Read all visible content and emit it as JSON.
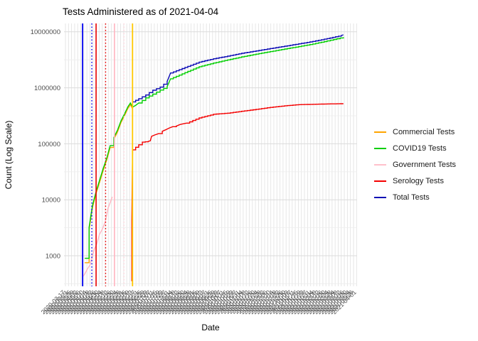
{
  "title": "Tests Administered as of 2021-04-04",
  "axes": {
    "x_label": "Date",
    "y_label": "Count (Log Scale)",
    "y_tick_labels": [
      "1000",
      "10000",
      "100000",
      "1000000",
      "10000000"
    ]
  },
  "legend": {
    "items": [
      {
        "label": "Commercial Tests",
        "color": "#FFA500"
      },
      {
        "label": "COVID19 Tests",
        "color": "#00CE00"
      },
      {
        "label": "Government Tests",
        "color": "#FFC0CB"
      },
      {
        "label": "Serology Tests",
        "color": "#F40000"
      },
      {
        "label": "Total Tests",
        "color": "#0A0AB4"
      }
    ]
  },
  "chart_data": {
    "type": "line",
    "y_scale": "log10",
    "ylim": [
      284,
      14000000
    ],
    "y_major_ticks": [
      1000,
      10000,
      100000,
      1000000,
      10000000
    ],
    "y_minor_ticks": [
      316,
      3162,
      31623,
      316228,
      3162278
    ],
    "grid": "on",
    "legend_position": "right",
    "x_tick_labels": [
      "2020-03-17",
      "2020-03-21",
      "2020-03-25",
      "2020-03-29",
      "2020-04-02",
      "2020-04-06",
      "2020-04-10",
      "2020-04-14",
      "2020-04-18",
      "2020-04-22",
      "2020-04-26",
      "2020-04-30",
      "2020-05-04",
      "2020-05-08",
      "2020-05-12",
      "2020-05-16",
      "2020-05-20",
      "2020-05-24",
      "2020-05-28",
      "2020-06-01",
      "2020-06-05",
      "2020-06-09",
      "2020-06-13",
      "2020-06-17",
      "2020-06-21",
      "2020-06-25",
      "2020-06-29",
      "2020-07-03",
      "2020-07-07",
      "2020-07-11",
      "2020-07-15",
      "2020-07-19",
      "2020-07-23",
      "2020-07-27",
      "2020-07-31",
      "2020-08-04",
      "2020-08-08",
      "2020-08-12",
      "2020-08-16",
      "2020-08-20",
      "2020-08-24",
      "2020-08-28",
      "2020-09-01",
      "2020-09-05",
      "2020-09-09",
      "2020-09-13",
      "2020-09-17",
      "2020-09-21",
      "2020-09-25",
      "2020-09-29",
      "2020-10-03",
      "2020-10-07",
      "2020-10-11",
      "2020-10-15",
      "2020-10-19",
      "2020-10-23",
      "2020-10-27",
      "2020-10-31",
      "2020-11-04",
      "2020-11-08",
      "2020-11-12",
      "2020-11-16",
      "2020-11-20",
      "2020-11-24",
      "2020-11-28",
      "2020-12-02",
      "2020-12-06",
      "2020-12-10",
      "2020-12-14",
      "2020-12-18",
      "2020-12-22",
      "2020-12-26",
      "2020-12-30",
      "2021-01-03",
      "2021-01-07",
      "2021-01-11",
      "2021-01-15",
      "2021-01-19",
      "2021-01-23",
      "2021-01-27",
      "2021-01-31",
      "2021-02-04",
      "2021-02-08",
      "2021-02-12",
      "2021-02-16",
      "2021-02-20",
      "2021-02-24",
      "2021-02-28",
      "2021-03-04",
      "2021-03-08",
      "2021-03-12",
      "2021-03-16",
      "2021-03-20",
      "2021-03-24",
      "2021-03-28",
      "2021-04-01"
    ],
    "series": [
      {
        "name": "Commercial Tests",
        "color": "#FFA500",
        "points": [
          [
            6.3,
            750
          ],
          [
            7.7,
            2900
          ],
          [
            8.8,
            7200
          ],
          [
            10,
            13000
          ],
          [
            11.2,
            21000
          ],
          [
            12.3,
            33000
          ],
          [
            13.5,
            52000
          ],
          [
            14.6,
            86000
          ],
          [
            15.8,
            121000
          ],
          [
            17,
            163000
          ],
          [
            18.1,
            238000
          ],
          [
            19.3,
            322000
          ],
          [
            20.4,
            430000
          ],
          [
            21.2,
            500000
          ],
          [
            21.9,
            420000
          ]
        ]
      },
      {
        "name": "Government Tests",
        "color": "#FFB6C1",
        "points": [
          [
            5.6,
            420
          ],
          [
            6.3,
            470
          ],
          [
            7,
            560
          ],
          [
            8.1,
            700
          ],
          [
            8.8,
            1000
          ],
          [
            9.5,
            1340
          ],
          [
            10.2,
            1600
          ],
          [
            11.1,
            2400
          ],
          [
            12.1,
            3030
          ],
          [
            13,
            4070
          ],
          [
            13.9,
            7080
          ],
          [
            14.6,
            8900
          ],
          [
            15.3,
            11300
          ]
        ]
      },
      {
        "name": "Serology Tests",
        "color": "#F40000",
        "points": [
          [
            21.65,
            350
          ],
          [
            21.65,
            4400
          ],
          [
            21.9,
            78000
          ],
          [
            23.9,
            96000
          ],
          [
            25.1,
            107000
          ],
          [
            27,
            110000
          ],
          [
            27.7,
            113000
          ],
          [
            28.1,
            136000
          ],
          [
            29.2,
            144000
          ],
          [
            30.4,
            152000
          ],
          [
            31.6,
            167000
          ],
          [
            32.7,
            178000
          ],
          [
            33.9,
            192000
          ],
          [
            35,
            202000
          ],
          [
            36.2,
            208000
          ],
          [
            37.4,
            221000
          ],
          [
            38.5,
            228000
          ],
          [
            39.5,
            234000
          ],
          [
            43.6,
            290000
          ],
          [
            48.3,
            337000
          ],
          [
            52.9,
            352000
          ],
          [
            57.5,
            381000
          ],
          [
            62.2,
            412000
          ],
          [
            66.8,
            447000
          ],
          [
            71.5,
            477000
          ],
          [
            76.1,
            501000
          ],
          [
            80.7,
            508000
          ],
          [
            85.4,
            515000
          ],
          [
            90.7,
            520000
          ]
        ]
      },
      {
        "name": "COVID19 Tests",
        "color": "#00CE00",
        "points": [
          [
            6.3,
            900
          ],
          [
            7.7,
            3200
          ],
          [
            8.8,
            7800
          ],
          [
            10,
            14000
          ],
          [
            11.2,
            23000
          ],
          [
            12.3,
            36000
          ],
          [
            13.5,
            56000
          ],
          [
            14.6,
            93000
          ],
          [
            15.8,
            130000
          ],
          [
            17,
            175000
          ],
          [
            18.1,
            255000
          ],
          [
            19.3,
            345000
          ],
          [
            20.4,
            460000
          ],
          [
            21.2,
            535000
          ],
          [
            21.9,
            450000
          ],
          [
            23,
            490000
          ],
          [
            23.9,
            535000
          ],
          [
            26.2,
            660000
          ],
          [
            28.5,
            770000
          ],
          [
            30.9,
            910000
          ],
          [
            33.2,
            1050000
          ],
          [
            34.3,
            1450000
          ],
          [
            39,
            1870000
          ],
          [
            43.6,
            2380000
          ],
          [
            48.3,
            2770000
          ],
          [
            52.9,
            3150000
          ],
          [
            57.5,
            3570000
          ],
          [
            62.2,
            4000000
          ],
          [
            66.8,
            4440000
          ],
          [
            71.5,
            4930000
          ],
          [
            76.1,
            5450000
          ],
          [
            80.7,
            6060000
          ],
          [
            85.4,
            6870000
          ],
          [
            90.7,
            8010000
          ]
        ]
      },
      {
        "name": "Total Tests",
        "color": "#0A0AB4",
        "points": [
          [
            21.9,
            560000
          ],
          [
            23.9,
            640000
          ],
          [
            26.2,
            745000
          ],
          [
            28.5,
            905000
          ],
          [
            30.9,
            1030000
          ],
          [
            33.2,
            1300000
          ],
          [
            34.3,
            1840000
          ],
          [
            39,
            2310000
          ],
          [
            43.6,
            2880000
          ],
          [
            48.3,
            3300000
          ],
          [
            52.9,
            3680000
          ],
          [
            57.5,
            4140000
          ],
          [
            62.2,
            4560000
          ],
          [
            66.8,
            5030000
          ],
          [
            71.5,
            5540000
          ],
          [
            76.1,
            6100000
          ],
          [
            80.7,
            6740000
          ],
          [
            85.4,
            7570000
          ],
          [
            90,
            8590000
          ],
          [
            90.7,
            8840000
          ]
        ]
      }
    ],
    "vlines": [
      {
        "i": 5.6,
        "color": "#0000F0",
        "style": "solid",
        "width": 1.8
      },
      {
        "i": 8.6,
        "color": "#0000F0",
        "style": "dotted",
        "width": 1.4
      },
      {
        "i": 10.0,
        "color": "#E80000",
        "style": "solid",
        "width": 1.6
      },
      {
        "i": 13.1,
        "color": "#E80000",
        "style": "dotted",
        "width": 1.4
      },
      {
        "i": 16.0,
        "color": "#FFB3C0",
        "style": "solid",
        "width": 1.6
      },
      {
        "i": 19.1,
        "color": "#FFD5DC",
        "style": "dotted",
        "width": 1.4
      },
      {
        "i": 21.88,
        "color": "#FFC800",
        "style": "solid",
        "width": 1.8
      }
    ]
  }
}
